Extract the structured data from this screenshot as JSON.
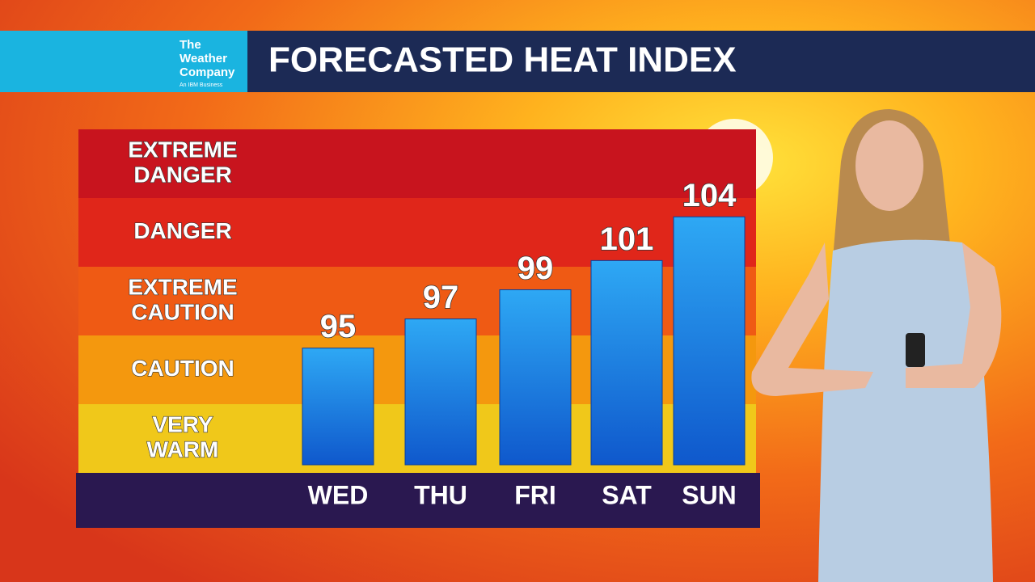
{
  "header": {
    "brand_lines": [
      "The",
      "Weather",
      "Company"
    ],
    "brand_tagline": "An IBM Business"
  },
  "chart_data": {
    "type": "bar",
    "title": "FORECASTED HEAT INDEX",
    "categories": [
      "WED",
      "THU",
      "FRI",
      "SAT",
      "SUN"
    ],
    "values": [
      95,
      97,
      99,
      101,
      104
    ],
    "color": "#1a7fe0",
    "ylim": [
      87,
      110
    ],
    "zones": [
      {
        "lines": [
          "EXTREME",
          "DANGER"
        ],
        "color": "#c8141e"
      },
      {
        "lines": [
          "DANGER"
        ],
        "color": "#e0261a"
      },
      {
        "lines": [
          "EXTREME",
          "CAUTION"
        ],
        "color": "#ef5a14"
      },
      {
        "lines": [
          "CAUTION"
        ],
        "color": "#f4980e"
      },
      {
        "lines": [
          "VERY",
          "WARM"
        ],
        "color": "#f0c81a"
      }
    ]
  }
}
